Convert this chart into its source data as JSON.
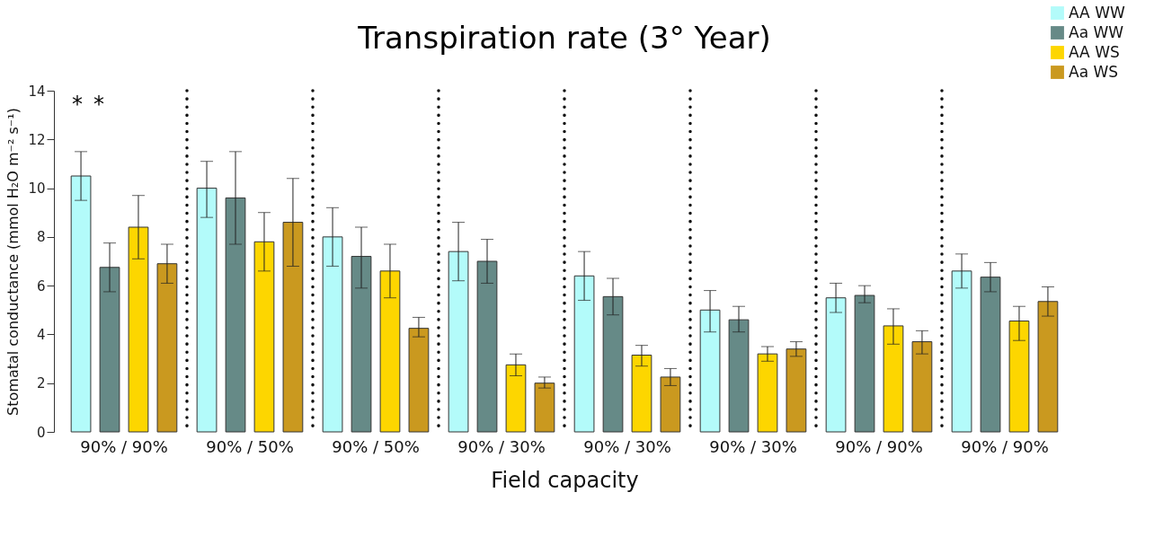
{
  "chart_data": {
    "type": "bar",
    "title": "Transpiration rate (3° Year)",
    "xlabel": "Field capacity",
    "ylabel": "Stomatal conductance (mmol H₂O m⁻² s⁻¹)",
    "categories": [
      "90% / 90%",
      "90% / 50%",
      "90% / 50%",
      "90% / 30%",
      "90% / 30%",
      "90% / 30%",
      "90% / 90%",
      "90% / 90%"
    ],
    "series": [
      {
        "name": "AA WW",
        "color": "#b3fbfa",
        "values": [
          10.5,
          10.0,
          8.0,
          7.4,
          6.4,
          5.0,
          5.5,
          6.6
        ],
        "errors": [
          [
            9.5,
            11.5
          ],
          [
            8.8,
            11.1
          ],
          [
            6.8,
            9.2
          ],
          [
            6.2,
            8.6
          ],
          [
            5.4,
            7.4
          ],
          [
            4.1,
            5.8
          ],
          [
            4.9,
            6.1
          ],
          [
            5.9,
            7.3
          ]
        ]
      },
      {
        "name": "Aa WW",
        "color": "#668a87",
        "values": [
          6.75,
          9.6,
          7.2,
          7.0,
          5.55,
          4.6,
          5.6,
          6.35
        ],
        "errors": [
          [
            5.75,
            7.75
          ],
          [
            7.7,
            11.5
          ],
          [
            5.9,
            8.4
          ],
          [
            6.1,
            7.9
          ],
          [
            4.8,
            6.3
          ],
          [
            4.1,
            5.15
          ],
          [
            5.3,
            6.0
          ],
          [
            5.75,
            6.95
          ]
        ]
      },
      {
        "name": "AA WS",
        "color": "#fdd600",
        "values": [
          8.4,
          7.8,
          6.6,
          2.75,
          3.15,
          3.2,
          4.35,
          4.55
        ],
        "errors": [
          [
            7.1,
            9.7
          ],
          [
            6.6,
            9.0
          ],
          [
            5.5,
            7.7
          ],
          [
            2.3,
            3.2
          ],
          [
            2.7,
            3.55
          ],
          [
            2.9,
            3.5
          ],
          [
            3.6,
            5.05
          ],
          [
            3.75,
            5.15
          ]
        ]
      },
      {
        "name": "Aa WS",
        "color": "#ca991f",
        "values": [
          6.9,
          8.6,
          4.25,
          2.0,
          2.25,
          3.4,
          3.7,
          5.35
        ],
        "errors": [
          [
            6.1,
            7.7
          ],
          [
            6.8,
            10.4
          ],
          [
            3.9,
            4.7
          ],
          [
            1.8,
            2.25
          ],
          [
            1.9,
            2.6
          ],
          [
            3.1,
            3.7
          ],
          [
            3.2,
            4.15
          ],
          [
            4.75,
            5.95
          ]
        ]
      }
    ],
    "ylim": [
      0,
      14
    ],
    "yticks": [
      0,
      2,
      4,
      6,
      8,
      10,
      12,
      14
    ],
    "grid": "x",
    "legend": "top right",
    "annotations": [
      "*",
      "*"
    ]
  }
}
